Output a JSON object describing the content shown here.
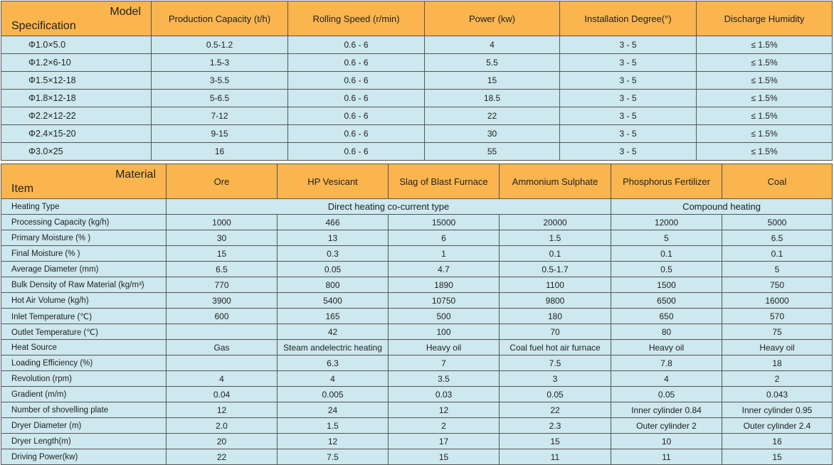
{
  "table1": {
    "corner": {
      "top": "Model",
      "bottom": "Specification"
    },
    "headers": [
      "Production Capacity (t/h)",
      "Rolling Speed (r/min)",
      "Power (kw)",
      "Installation Degree(°)",
      "Discharge Humidity"
    ],
    "rows": [
      [
        "Φ1.0×5.0",
        "0.5-1.2",
        "0.6 - 6",
        "4",
        "3 - 5",
        "≤ 1.5%"
      ],
      [
        "Φ1.2×6-10",
        "1.5-3",
        "0.6 - 6",
        "5.5",
        "3 - 5",
        "≤ 1.5%"
      ],
      [
        "Φ1.5×12-18",
        "3-5.5",
        "0.6 - 6",
        "15",
        "3 - 5",
        "≤ 1.5%"
      ],
      [
        "Φ1.8×12-18",
        "5-6.5",
        "0.6 - 6",
        "18.5",
        "3 - 5",
        "≤ 1.5%"
      ],
      [
        "Φ2.2×12-22",
        "7-12",
        "0.6 - 6",
        "22",
        "3 - 5",
        "≤ 1.5%"
      ],
      [
        "Φ2.4×15-20",
        "9-15",
        "0.6 - 6",
        "30",
        "3 - 5",
        "≤ 1.5%"
      ],
      [
        "Φ3.0×25",
        "16",
        "0.6 - 6",
        "55",
        "3 - 5",
        "≤ 1.5%"
      ]
    ]
  },
  "table2": {
    "corner": {
      "top": "Material",
      "bottom": "Item"
    },
    "headers": [
      "Ore",
      "HP Vesicant",
      "Slag of Blast Furnace",
      "Ammonium Sulphate",
      "Phosphorus Fertilizer",
      "Coal"
    ],
    "rows": [
      {
        "label": "Heating Type",
        "cells": [
          "Direct heating co-current type",
          "Compound heating"
        ]
      },
      {
        "label": "Processing Capacity (kg/h)",
        "cells": [
          "1000",
          "466",
          "15000",
          "20000",
          "12000",
          "5000"
        ]
      },
      {
        "label": "Primary Moisture (% )",
        "cells": [
          "30",
          "13",
          "6",
          "1.5",
          "5",
          "6.5"
        ]
      },
      {
        "label": "Final Moisture (% )",
        "cells": [
          "15",
          "0.3",
          "1",
          "0.1",
          "0.1",
          "0.1"
        ]
      },
      {
        "label": "Average Diameter (mm)",
        "cells": [
          "6.5",
          "0.05",
          "4.7",
          "0.5-1.7",
          "0.5",
          "5"
        ]
      },
      {
        "label": "Bulk Density of Raw Material (kg/m³)",
        "cells": [
          "770",
          "800",
          "1890",
          "1100",
          "1500",
          "750"
        ]
      },
      {
        "label": "Hot Air Volume (kg/h)",
        "cells": [
          "3900",
          "5400",
          "10750",
          "9800",
          "6500",
          "16000"
        ]
      },
      {
        "label": "Inlet Temperature (℃)",
        "cells": [
          "600",
          "165",
          "500",
          "180",
          "650",
          "570"
        ]
      },
      {
        "label": "Outlet Temperature (℃)",
        "cells": [
          null,
          "42",
          "100",
          "70",
          "80",
          "75"
        ]
      },
      {
        "label": "Heat Source",
        "cells": [
          "Gas",
          "Steam andelectric heating",
          "Heavy oil",
          "Coal fuel hot air furnace",
          "Heavy oil",
          "Heavy oil"
        ]
      },
      {
        "label": "Loading Efficiency (%)",
        "cells": [
          null,
          "6.3",
          "7",
          "7.5",
          "7.8",
          "18"
        ]
      },
      {
        "label": "Revolution (rpm)",
        "cells": [
          "4",
          "4",
          "3.5",
          "3",
          "4",
          "2"
        ]
      },
      {
        "label": "Gradient (m/m)",
        "cells": [
          "0.04",
          "0.005",
          "0.03",
          "0.05",
          "0.05",
          "0.043"
        ]
      },
      {
        "label": "Number of shovelling plate",
        "cells": [
          "12",
          "24",
          "12",
          "22",
          "Inner cylinder 0.84",
          "Inner cylinder 0.95"
        ]
      },
      {
        "label": "Dryer Diameter (m)",
        "cells": [
          "2.0",
          "1.5",
          "2",
          "2.3",
          "Outer cylinder 2",
          "Outer cylinder 2.4"
        ]
      },
      {
        "label": "Dryer Length(m)",
        "cells": [
          "20",
          "12",
          "17",
          "15",
          "10",
          "16"
        ]
      },
      {
        "label": "Driving Power(kw)",
        "cells": [
          "22",
          "7.5",
          "15",
          "11",
          "11",
          "15"
        ]
      }
    ]
  }
}
